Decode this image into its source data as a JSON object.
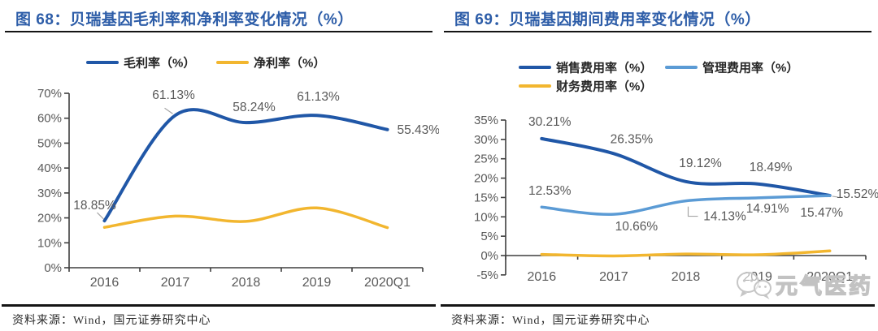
{
  "panels": [
    {
      "title": "图 68：贝瑞基因毛利率和净利率变化情况（%）",
      "source": "资料来源：Wind，国元证券研究中心"
    },
    {
      "title": "图 69：贝瑞基因期间费用率变化情况（%）",
      "source": "资料来源：Wind，国元证券研究中心"
    }
  ],
  "watermark": {
    "text": "元气医药"
  },
  "colors": {
    "title_blue": "#2D5DA8",
    "dark_blue_line": "#2057A7",
    "light_blue_line": "#5B9BD5",
    "yellow_line": "#F2B62F",
    "axis_text": "#595959",
    "axis_line": "#3f3f3f",
    "leader_line": "#a6a6a6"
  },
  "chart_data": [
    {
      "type": "line",
      "title": "图 68：贝瑞基因毛利率和净利率变化情况（%）",
      "categories": [
        "2016",
        "2017",
        "2018",
        "2019",
        "2020Q1"
      ],
      "series": [
        {
          "name": "毛利率（%）",
          "color": "#2057A7",
          "values": [
            18.85,
            61.13,
            58.24,
            61.13,
            55.43
          ],
          "labeled": true
        },
        {
          "name": "净利率（%）",
          "color": "#F2B62F",
          "values": [
            16.2,
            20.7,
            18.6,
            24.0,
            16.1
          ],
          "labeled": false
        }
      ],
      "xlabel": "",
      "ylabel": "",
      "ylim": [
        0,
        70
      ],
      "ystep": 10,
      "yformat": "percent",
      "grid": false,
      "legend_position": "top"
    },
    {
      "type": "line",
      "title": "图 69：贝瑞基因期间费用率变化情况（%）",
      "categories": [
        "2016",
        "2017",
        "2018",
        "2019",
        "2020Q1"
      ],
      "series": [
        {
          "name": "销售费用率（%）",
          "color": "#2057A7",
          "values": [
            30.21,
            26.35,
            19.12,
            18.49,
            15.52
          ],
          "labeled": true
        },
        {
          "name": "管理费用率（%）",
          "color": "#5B9BD5",
          "values": [
            12.53,
            10.66,
            14.13,
            14.91,
            15.47
          ],
          "labeled": true
        },
        {
          "name": "财务费用率（%）",
          "color": "#F2B62F",
          "values": [
            0.3,
            -0.1,
            0.4,
            0.2,
            1.2
          ],
          "labeled": false
        }
      ],
      "xlabel": "",
      "ylabel": "",
      "ylim": [
        -5,
        35
      ],
      "ystep": 5,
      "yformat": "percent",
      "grid": false,
      "legend_position": "top"
    }
  ]
}
